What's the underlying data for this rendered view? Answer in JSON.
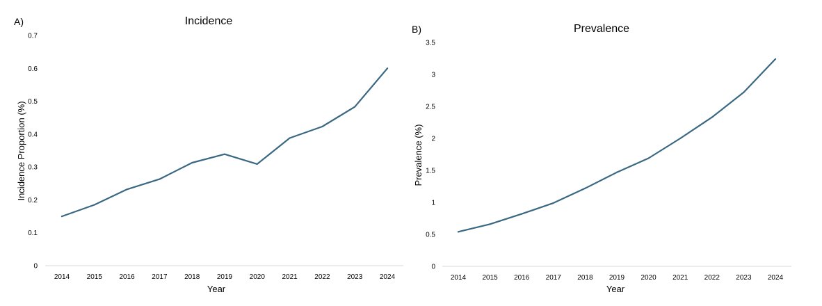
{
  "colors": {
    "line": "#3a6882",
    "axis": "#d9d9d9",
    "text": "#000000"
  },
  "chart_data": [
    {
      "type": "line",
      "panel_label": "A)",
      "title": "Incidence",
      "xlabel": "Year",
      "ylabel": "Incidence Proportion (%)",
      "ylim": [
        0,
        0.7
      ],
      "yticks": [
        "0",
        "0.1",
        "0.2",
        "0.3",
        "0.4",
        "0.5",
        "0.6",
        "0.7"
      ],
      "ytick_values": [
        0,
        0.1,
        0.2,
        0.3,
        0.4,
        0.5,
        0.6,
        0.7
      ],
      "grid": false,
      "legend": "none",
      "categories": [
        "2014",
        "2015",
        "2016",
        "2017",
        "2018",
        "2019",
        "2020",
        "2021",
        "2022",
        "2023",
        "2024"
      ],
      "values": [
        0.15,
        0.185,
        0.232,
        0.263,
        0.313,
        0.339,
        0.309,
        0.388,
        0.423,
        0.483,
        0.6
      ]
    },
    {
      "type": "line",
      "panel_label": "B)",
      "title": "Prevalence",
      "xlabel": "Year",
      "ylabel": "Prevalence (%)",
      "ylim": [
        0,
        3.5
      ],
      "yticks": [
        "0",
        "0.5",
        "1",
        "1.5",
        "2",
        "2.5",
        "3",
        "3.5"
      ],
      "ytick_values": [
        0,
        0.5,
        1,
        1.5,
        2,
        2.5,
        3,
        3.5
      ],
      "grid": false,
      "legend": "none",
      "categories": [
        "2014",
        "2015",
        "2016",
        "2017",
        "2018",
        "2019",
        "2020",
        "2021",
        "2022",
        "2023",
        "2024"
      ],
      "values": [
        0.54,
        0.66,
        0.82,
        0.99,
        1.22,
        1.47,
        1.69,
        2.0,
        2.33,
        2.72,
        3.24
      ]
    }
  ]
}
